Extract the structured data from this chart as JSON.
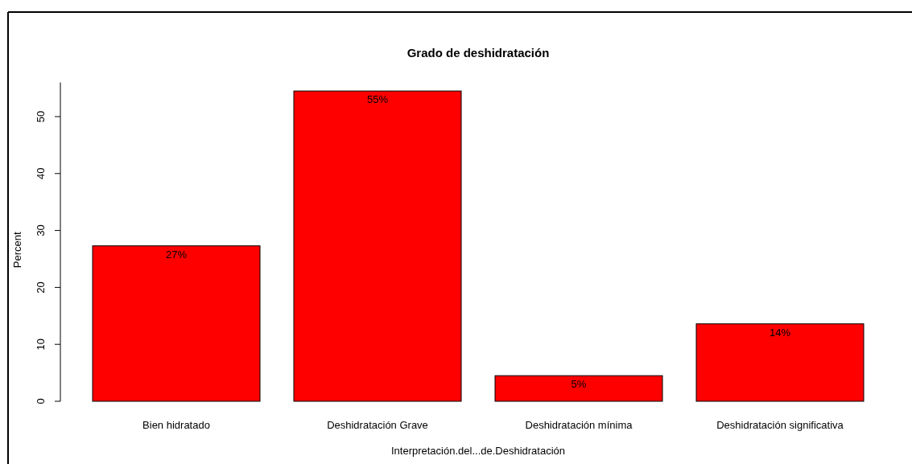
{
  "chart_data": {
    "type": "bar",
    "title": "Grado de deshidratación",
    "xlabel": "Interpretación.del...de.Deshidratación",
    "ylabel": "Percent",
    "categories": [
      "Bien hidratado",
      "Deshidratación Grave",
      "Deshidratación mínima",
      "Deshidratación significativa"
    ],
    "values": [
      27.3,
      54.5,
      4.5,
      13.6
    ],
    "value_labels": [
      "27%",
      "55%",
      "5%",
      "14%"
    ],
    "color": "#ff0000",
    "ylim": [
      0,
      56
    ],
    "yticks": [
      0,
      10,
      20,
      30,
      40,
      50
    ],
    "grid": false,
    "legend": false
  }
}
